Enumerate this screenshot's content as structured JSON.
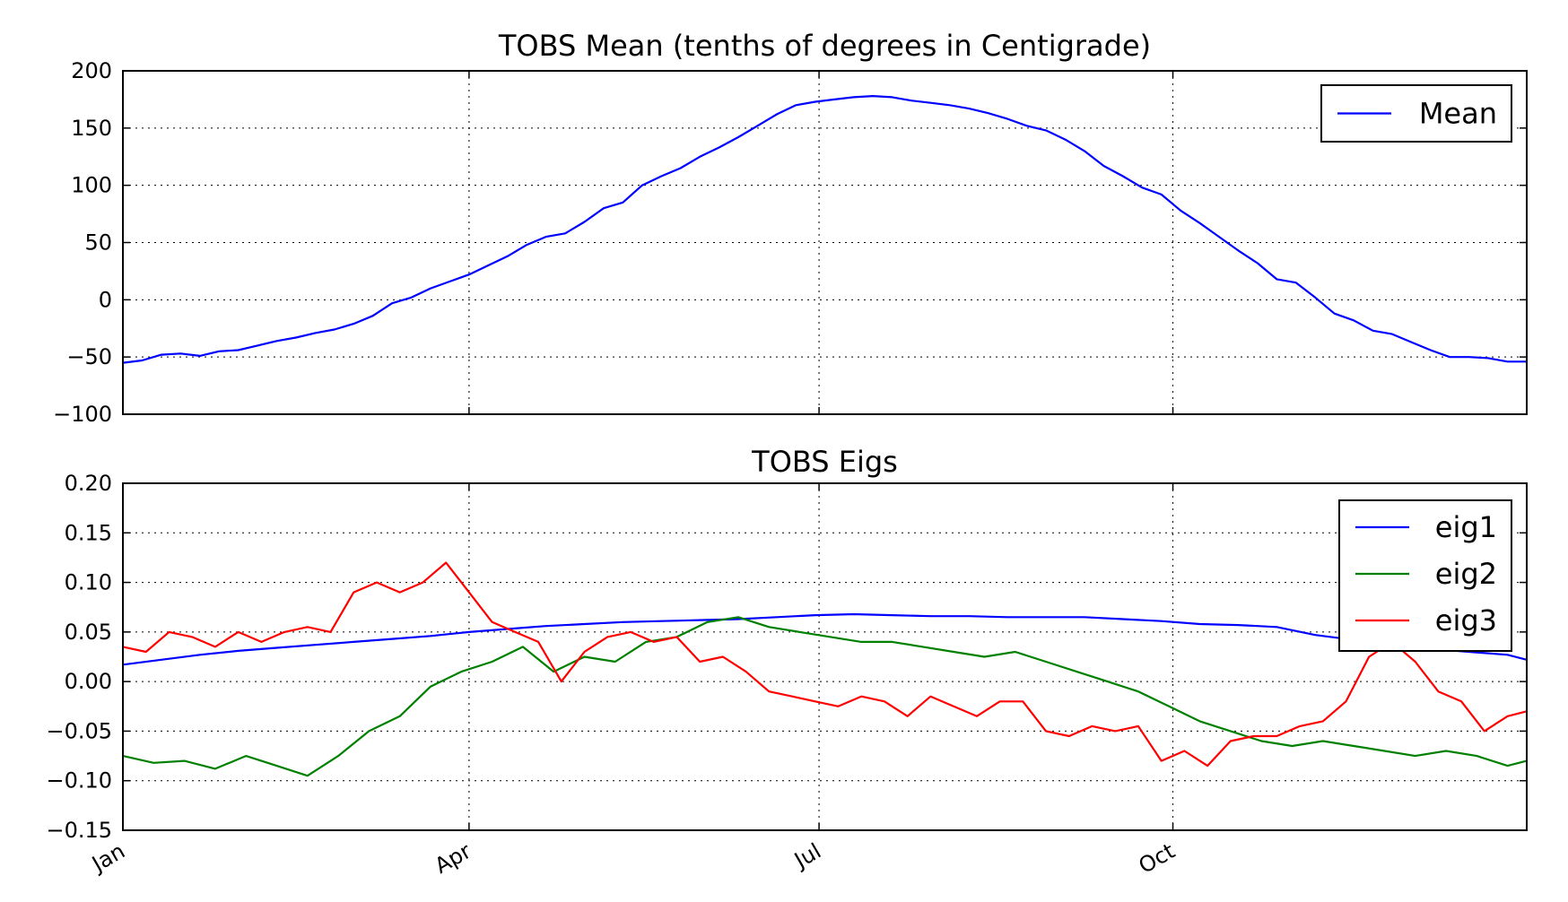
{
  "chart_data": [
    {
      "type": "line",
      "title": "TOBS Mean (tenths of degrees in Centigrade)",
      "xlabel": "",
      "ylabel": "",
      "xlim": [
        0,
        365
      ],
      "ylim": [
        -100,
        200
      ],
      "yticks": [
        -100,
        -50,
        0,
        50,
        100,
        150,
        200
      ],
      "ytick_labels": [
        "−100",
        "−50",
        "0",
        "50",
        "100",
        "150",
        "200"
      ],
      "xticks": [
        0,
        90,
        181,
        273
      ],
      "xtick_labels": [],
      "grid": true,
      "legend": "top-right",
      "series": [
        {
          "name": "Mean",
          "color": "#0000ff",
          "x": [
            0,
            5,
            10,
            15,
            20,
            25,
            30,
            35,
            40,
            45,
            50,
            55,
            60,
            65,
            70,
            75,
            80,
            85,
            90,
            95,
            100,
            105,
            110,
            115,
            120,
            125,
            130,
            135,
            140,
            145,
            150,
            155,
            160,
            165,
            170,
            175,
            180,
            185,
            190,
            195,
            200,
            205,
            210,
            215,
            220,
            225,
            230,
            235,
            240,
            245,
            250,
            255,
            260,
            265,
            270,
            275,
            280,
            285,
            290,
            295,
            300,
            305,
            310,
            315,
            320,
            325,
            330,
            335,
            340,
            345,
            350,
            355,
            360,
            365
          ],
          "y": [
            -55,
            -53,
            -48,
            -47,
            -49,
            -45,
            -44,
            -40,
            -36,
            -33,
            -29,
            -26,
            -21,
            -14,
            -3,
            2,
            10,
            16,
            22,
            30,
            38,
            48,
            55,
            58,
            68,
            80,
            85,
            100,
            108,
            115,
            125,
            133,
            142,
            152,
            162,
            170,
            173,
            175,
            177,
            178,
            177,
            174,
            172,
            170,
            167,
            163,
            158,
            152,
            148,
            140,
            130,
            117,
            108,
            98,
            92,
            78,
            67,
            55,
            43,
            32,
            18,
            15,
            2,
            -12,
            -18,
            -27,
            -30,
            -37,
            -44,
            -50,
            -50,
            -51,
            -54,
            -54
          ]
        }
      ]
    },
    {
      "type": "line",
      "title": "TOBS Eigs",
      "xlabel": "",
      "ylabel": "",
      "xlim": [
        0,
        365
      ],
      "ylim": [
        -0.15,
        0.2
      ],
      "yticks": [
        -0.15,
        -0.1,
        -0.05,
        0.0,
        0.05,
        0.1,
        0.15,
        0.2
      ],
      "ytick_labels": [
        "−0.15",
        "−0.10",
        "−0.05",
        "0.00",
        "0.05",
        "0.10",
        "0.15",
        "0.20"
      ],
      "xticks": [
        0,
        90,
        181,
        273
      ],
      "xtick_labels": [
        "Jan",
        "Apr",
        "Jul",
        "Oct"
      ],
      "grid": true,
      "legend": "top-right",
      "series": [
        {
          "name": "eig1",
          "color": "#0000ff",
          "x": [
            0,
            10,
            20,
            30,
            40,
            50,
            60,
            70,
            80,
            90,
            100,
            110,
            120,
            130,
            140,
            150,
            160,
            170,
            180,
            190,
            200,
            210,
            220,
            230,
            240,
            250,
            260,
            270,
            280,
            290,
            300,
            310,
            320,
            330,
            340,
            350,
            360,
            365
          ],
          "y": [
            0.017,
            0.022,
            0.027,
            0.031,
            0.034,
            0.037,
            0.04,
            0.043,
            0.046,
            0.05,
            0.053,
            0.056,
            0.058,
            0.06,
            0.061,
            0.062,
            0.063,
            0.065,
            0.067,
            0.068,
            0.067,
            0.066,
            0.066,
            0.065,
            0.065,
            0.065,
            0.063,
            0.061,
            0.058,
            0.057,
            0.055,
            0.047,
            0.042,
            0.038,
            0.033,
            0.03,
            0.027,
            0.022
          ]
        },
        {
          "name": "eig2",
          "color": "#008000",
          "x": [
            0,
            8,
            16,
            24,
            32,
            40,
            48,
            56,
            64,
            72,
            80,
            88,
            96,
            104,
            112,
            120,
            128,
            136,
            144,
            152,
            160,
            168,
            176,
            184,
            192,
            200,
            208,
            216,
            224,
            232,
            240,
            248,
            256,
            264,
            272,
            280,
            288,
            296,
            304,
            312,
            320,
            328,
            336,
            344,
            352,
            360,
            365
          ],
          "y": [
            -0.075,
            -0.082,
            -0.08,
            -0.088,
            -0.075,
            -0.085,
            -0.095,
            -0.075,
            -0.05,
            -0.035,
            -0.005,
            0.01,
            0.02,
            0.035,
            0.01,
            0.025,
            0.02,
            0.04,
            0.045,
            0.06,
            0.065,
            0.055,
            0.05,
            0.045,
            0.04,
            0.04,
            0.035,
            0.03,
            0.025,
            0.03,
            0.02,
            0.01,
            0.0,
            -0.01,
            -0.025,
            -0.04,
            -0.05,
            -0.06,
            -0.065,
            -0.06,
            -0.065,
            -0.07,
            -0.075,
            -0.07,
            -0.075,
            -0.085,
            -0.08
          ]
        },
        {
          "name": "eig3",
          "color": "#ff0000",
          "x": [
            0,
            6,
            12,
            18,
            24,
            30,
            36,
            42,
            48,
            54,
            60,
            66,
            72,
            78,
            84,
            90,
            96,
            102,
            108,
            114,
            120,
            126,
            132,
            138,
            144,
            150,
            156,
            162,
            168,
            174,
            180,
            186,
            192,
            198,
            204,
            210,
            216,
            222,
            228,
            234,
            240,
            246,
            252,
            258,
            264,
            270,
            276,
            282,
            288,
            294,
            300,
            306,
            312,
            318,
            324,
            330,
            336,
            342,
            348,
            354,
            360,
            365
          ],
          "y": [
            0.035,
            0.03,
            0.05,
            0.045,
            0.035,
            0.05,
            0.04,
            0.05,
            0.055,
            0.05,
            0.09,
            0.1,
            0.09,
            0.1,
            0.12,
            0.09,
            0.06,
            0.05,
            0.04,
            0.0,
            0.03,
            0.045,
            0.05,
            0.04,
            0.045,
            0.02,
            0.025,
            0.01,
            -0.01,
            -0.015,
            -0.02,
            -0.025,
            -0.015,
            -0.02,
            -0.035,
            -0.015,
            -0.025,
            -0.035,
            -0.02,
            -0.02,
            -0.05,
            -0.055,
            -0.045,
            -0.05,
            -0.045,
            -0.08,
            -0.07,
            -0.085,
            -0.06,
            -0.055,
            -0.055,
            -0.045,
            -0.04,
            -0.02,
            0.025,
            0.04,
            0.02,
            -0.01,
            -0.02,
            -0.05,
            -0.035,
            -0.03
          ]
        }
      ]
    }
  ]
}
